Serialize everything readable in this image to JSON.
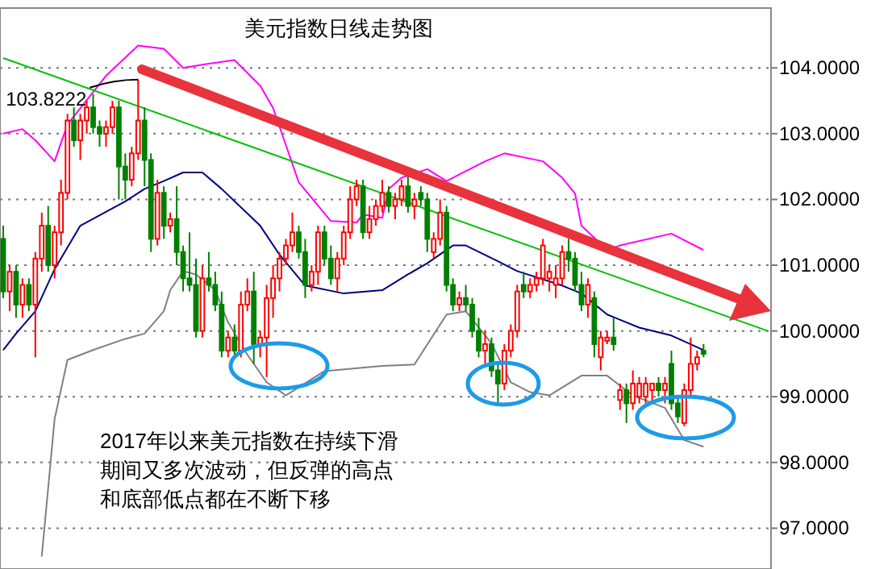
{
  "chart_data": {
    "type": "candlestick",
    "title": "美元指数日线走势图",
    "annotations": [
      "2017年以来美元指数在持续下滑",
      "期间又多次波动，但反弹的高点",
      "和底部低点都在不断下移",
      {
        "text": "103.8222",
        "y": 103.8222
      }
    ],
    "categories": [
      null,
      null,
      null,
      null,
      null,
      null,
      null,
      null,
      null,
      null,
      null,
      null,
      null,
      null,
      null,
      null,
      null,
      null,
      null,
      null,
      null,
      null,
      null,
      null,
      null,
      null,
      null,
      null,
      null,
      null,
      null,
      null,
      null,
      null,
      null,
      null,
      null,
      null,
      null,
      null,
      null,
      null,
      null,
      null,
      null,
      null,
      null,
      null,
      null,
      null,
      null,
      null,
      null,
      null,
      null,
      null,
      null,
      null,
      null,
      null,
      null,
      null,
      null,
      null,
      null,
      null,
      null,
      null,
      null,
      null,
      null,
      null,
      null,
      null,
      null,
      null,
      null,
      null,
      null,
      null,
      null,
      null,
      null,
      null,
      null,
      null,
      null,
      null,
      null,
      null,
      null,
      null,
      null,
      null,
      null,
      null,
      null,
      null,
      null,
      null,
      null,
      null,
      null,
      null,
      null,
      null,
      null,
      null,
      null,
      null,
      null,
      null,
      null,
      null,
      null,
      null,
      null,
      null,
      null,
      null
    ],
    "ohlc": [
      [
        101.4,
        101.6,
        100.5,
        100.6
      ],
      [
        100.6,
        101.0,
        100.3,
        100.9
      ],
      [
        100.9,
        101.0,
        100.2,
        100.4
      ],
      [
        100.4,
        100.8,
        100.2,
        100.7
      ],
      [
        100.7,
        100.8,
        100.3,
        100.4
      ],
      [
        100.4,
        101.2,
        99.6,
        101.1
      ],
      [
        101.1,
        101.8,
        100.9,
        101.6
      ],
      [
        101.6,
        101.9,
        100.9,
        101.0
      ],
      [
        101.0,
        101.6,
        100.8,
        101.5
      ],
      [
        101.5,
        102.3,
        101.3,
        102.1
      ],
      [
        102.1,
        103.3,
        102.0,
        103.2
      ],
      [
        103.2,
        103.4,
        102.8,
        102.9
      ],
      [
        102.9,
        103.3,
        102.6,
        103.2
      ],
      [
        103.2,
        103.5,
        103.0,
        103.4
      ],
      [
        103.4,
        103.6,
        103.0,
        103.1
      ],
      [
        103.1,
        103.2,
        102.8,
        103.0
      ],
      [
        103.0,
        103.2,
        102.8,
        103.1
      ],
      [
        103.1,
        103.5,
        103.0,
        103.4
      ],
      [
        103.4,
        103.5,
        102.0,
        102.5
      ],
      [
        102.5,
        102.7,
        102.0,
        102.3
      ],
      [
        102.3,
        102.8,
        102.2,
        102.7
      ],
      [
        102.7,
        103.8222,
        102.6,
        103.2
      ],
      [
        103.2,
        103.4,
        102.2,
        102.6
      ],
      [
        102.6,
        102.7,
        101.2,
        101.4
      ],
      [
        101.4,
        102.3,
        101.3,
        102.1
      ],
      [
        102.1,
        102.2,
        101.4,
        101.6
      ],
      [
        101.6,
        101.8,
        101.5,
        101.7
      ],
      [
        101.7,
        102.2,
        101.0,
        101.2
      ],
      [
        101.2,
        101.3,
        100.6,
        100.8
      ],
      [
        100.8,
        101.5,
        100.6,
        100.7
      ],
      [
        100.7,
        101.1,
        99.9,
        100.0
      ],
      [
        100.0,
        101.0,
        99.9,
        100.8
      ],
      [
        100.8,
        101.2,
        100.6,
        100.7
      ],
      [
        100.7,
        100.9,
        100.3,
        100.4
      ],
      [
        100.4,
        100.6,
        99.6,
        99.7
      ],
      [
        99.7,
        100.0,
        99.6,
        99.9
      ],
      [
        99.9,
        100.1,
        99.6,
        99.7
      ],
      [
        99.7,
        100.6,
        99.6,
        100.4
      ],
      [
        100.4,
        100.8,
        100.3,
        100.6
      ],
      [
        100.6,
        100.9,
        99.5,
        99.8
      ],
      [
        99.8,
        100.0,
        99.6,
        99.9
      ],
      [
        99.9,
        100.7,
        99.3,
        100.5
      ],
      [
        100.5,
        101.0,
        100.2,
        100.8
      ],
      [
        100.8,
        101.2,
        100.6,
        101.1
      ],
      [
        101.1,
        101.4,
        101.0,
        101.3
      ],
      [
        101.3,
        101.8,
        101.2,
        101.5
      ],
      [
        101.5,
        101.6,
        101.1,
        101.2
      ],
      [
        101.2,
        101.4,
        100.5,
        100.7
      ],
      [
        100.7,
        101.0,
        100.6,
        100.9
      ],
      [
        100.9,
        101.6,
        100.7,
        101.5
      ],
      [
        101.5,
        101.6,
        101.0,
        101.1
      ],
      [
        101.1,
        101.3,
        100.7,
        100.8
      ],
      [
        100.8,
        101.2,
        100.6,
        101.1
      ],
      [
        101.1,
        101.6,
        101.0,
        101.5
      ],
      [
        101.5,
        102.2,
        101.4,
        102.0
      ],
      [
        102.0,
        102.3,
        101.9,
        102.2
      ],
      [
        102.2,
        102.3,
        101.4,
        101.5
      ],
      [
        101.5,
        101.9,
        101.4,
        101.7
      ],
      [
        101.7,
        102.0,
        101.6,
        101.9
      ],
      [
        101.9,
        102.3,
        101.8,
        102.1
      ],
      [
        102.1,
        102.2,
        101.8,
        101.9
      ],
      [
        101.9,
        102.1,
        101.7,
        102.0
      ],
      [
        102.0,
        102.3,
        101.9,
        102.2
      ],
      [
        102.2,
        102.4,
        101.8,
        101.9
      ],
      [
        101.9,
        102.1,
        101.7,
        102.0
      ],
      [
        102.1,
        102.2,
        101.9,
        102.0
      ],
      [
        102.0,
        102.1,
        101.2,
        101.4
      ],
      [
        101.2,
        101.5,
        101.1,
        101.4
      ],
      [
        101.4,
        102.0,
        101.3,
        101.8
      ],
      [
        101.8,
        101.9,
        100.6,
        100.7
      ],
      [
        100.7,
        100.8,
        100.3,
        100.4
      ],
      [
        100.4,
        100.6,
        100.3,
        100.5
      ],
      [
        100.5,
        100.7,
        100.3,
        100.4
      ],
      [
        100.4,
        100.5,
        99.9,
        100.0
      ],
      [
        100.0,
        100.2,
        99.6,
        99.7
      ],
      [
        99.7,
        100.0,
        99.5,
        99.8
      ],
      [
        99.8,
        99.9,
        99.3,
        99.4
      ],
      [
        99.4,
        99.5,
        98.9,
        99.2
      ],
      [
        99.2,
        99.8,
        99.1,
        99.7
      ],
      [
        99.7,
        100.1,
        99.6,
        100.0
      ],
      [
        100.0,
        100.7,
        99.9,
        100.6
      ],
      [
        100.7,
        100.9,
        100.5,
        100.6
      ],
      [
        100.6,
        100.8,
        100.5,
        100.7
      ],
      [
        100.7,
        100.9,
        100.6,
        100.8
      ],
      [
        100.8,
        101.4,
        100.7,
        101.3
      ],
      [
        100.8,
        101.0,
        100.6,
        100.9
      ],
      [
        100.7,
        101.0,
        100.5,
        100.8
      ],
      [
        100.8,
        101.3,
        100.7,
        101.2
      ],
      [
        101.2,
        101.4,
        100.9,
        101.1
      ],
      [
        101.1,
        101.2,
        100.6,
        100.7
      ],
      [
        100.7,
        100.9,
        100.3,
        100.4
      ],
      [
        100.4,
        100.8,
        100.2,
        100.7
      ],
      [
        100.5,
        100.6,
        99.6,
        99.8
      ],
      [
        99.6,
        100.0,
        99.4,
        99.9
      ],
      [
        99.85,
        100.0,
        99.8,
        99.9
      ],
      [
        99.9,
        100.2,
        99.7,
        99.8
      ],
      [
        98.95,
        99.2,
        98.8,
        99.1
      ],
      [
        99.1,
        99.2,
        98.6,
        98.9
      ],
      [
        98.9,
        99.4,
        98.8,
        99.2
      ],
      [
        99.0,
        99.3,
        98.9,
        99.2
      ],
      [
        99.0,
        99.3,
        98.9,
        99.2
      ],
      [
        99.1,
        99.2,
        98.9,
        99.2
      ],
      [
        99.2,
        99.3,
        99.0,
        99.1
      ],
      [
        99.1,
        99.3,
        98.9,
        99.2
      ],
      [
        99.5,
        99.7,
        98.8,
        98.9
      ],
      [
        98.9,
        99.0,
        98.6,
        98.7
      ],
      [
        98.6,
        99.2,
        98.55,
        99.1
      ],
      [
        99.1,
        99.9,
        99.0,
        99.5
      ],
      [
        99.5,
        99.7,
        99.4,
        99.6
      ],
      [
        99.7,
        99.8,
        99.6,
        99.65
      ],
      null,
      null,
      null,
      null,
      null,
      null,
      null,
      null,
      null,
      null
    ],
    "colors": [
      "#008000",
      "#ff0000",
      "#008000",
      "#ff0000",
      "#008000",
      "#ff0000",
      "#ff0000",
      "#008000",
      "#ff0000",
      "#ff0000",
      "#ff0000",
      "#008000",
      "#ff0000",
      "#ff0000",
      "#008000",
      "#008000",
      "#ff0000",
      "#ff0000",
      "#008000",
      "#008000",
      "#ff0000",
      "#ff0000",
      "#008000",
      "#008000",
      "#ff0000",
      "#008000",
      "#ff0000",
      "#008000",
      "#008000",
      "#008000",
      "#008000",
      "#ff0000",
      "#008000",
      "#008000",
      "#008000",
      "#ff0000",
      "#008000",
      "#ff0000",
      "#ff0000",
      "#008000",
      "#ff0000",
      "#ff0000",
      "#ff0000",
      "#ff0000",
      "#ff0000",
      "#ff0000",
      "#008000",
      "#008000",
      "#ff0000",
      "#ff0000",
      "#008000",
      "#008000",
      "#ff0000",
      "#ff0000",
      "#ff0000",
      "#ff0000",
      "#008000",
      "#ff0000",
      "#ff0000",
      "#ff0000",
      "#008000",
      "#ff0000",
      "#ff0000",
      "#008000",
      "#ff0000",
      "#008000",
      "#008000",
      "#ff0000",
      "#ff0000",
      "#008000",
      "#008000",
      "#ff0000",
      "#008000",
      "#008000",
      "#008000",
      "#ff0000",
      "#008000",
      "#008000",
      "#ff0000",
      "#ff0000",
      "#ff0000",
      "#008000",
      "#ff0000",
      "#ff0000",
      "#ff0000",
      "#ff0000",
      "#ff0000",
      "#ff0000",
      "#008000",
      "#008000",
      "#008000",
      "#ff0000",
      "#008000",
      "#ff0000",
      "#ff0000",
      "#008000",
      "#ff0000",
      "#008000",
      "#ff0000",
      "#ff0000",
      "#ff0000",
      "#ff0000",
      "#008000",
      "#ff0000",
      "#008000",
      "#008000",
      "#ff0000",
      "#ff0000",
      "#ff0000",
      "#008000",
      null,
      null,
      null,
      null,
      null,
      null,
      null,
      null,
      null,
      null
    ],
    "series": [
      {
        "type": "line",
        "color": "#ff00ff",
        "values": [
          103.0,
          null,
          null,
          103.07,
          null,
          102.9,
          null,
          null,
          102.58,
          null,
          103.14,
          null,
          null,
          null,
          null,
          null,
          103.88,
          null,
          null,
          null,
          null,
          104.34,
          null,
          null,
          null,
          104.29,
          null,
          null,
          104.0,
          null,
          null,
          104.05,
          null,
          null,
          null,
          null,
          104.12,
          null,
          null,
          null,
          103.73,
          null,
          103.39,
          null,
          null,
          null,
          102.26,
          null,
          null,
          null,
          null,
          101.67,
          null,
          null,
          null,
          101.65,
          101.77,
          null,
          null,
          101.72,
          102.16,
          null,
          102.33,
          null,
          null,
          null,
          102.46,
          null,
          null,
          102.28,
          null,
          null,
          null,
          null,
          null,
          102.58,
          null,
          null,
          102.7,
          null,
          null,
          null,
          null,
          null,
          102.58,
          null,
          null,
          102.33,
          null,
          102.09,
          101.6,
          null,
          null,
          null,
          101.23,
          null,
          101.3,
          null,
          null,
          null,
          null,
          null,
          null,
          null,
          101.48,
          null,
          null,
          null,
          null,
          101.23,
          null,
          null,
          null,
          null,
          null,
          null,
          null,
          null,
          null,
          null
        ]
      },
      {
        "type": "line",
        "color": "#000080",
        "values": [
          99.71,
          null,
          99.96,
          null,
          null,
          100.3,
          null,
          null,
          100.94,
          null,
          null,
          null,
          101.6,
          null,
          null,
          null,
          null,
          null,
          null,
          101.97,
          null,
          null,
          102.16,
          null,
          null,
          102.28,
          null,
          null,
          102.41,
          null,
          null,
          102.41,
          null,
          null,
          102.16,
          null,
          null,
          null,
          null,
          null,
          101.6,
          null,
          null,
          101.16,
          null,
          null,
          null,
          100.69,
          null,
          null,
          null,
          null,
          null,
          100.57,
          null,
          null,
          null,
          null,
          null,
          100.62,
          null,
          null,
          null,
          100.86,
          null,
          null,
          101.03,
          null,
          null,
          null,
          101.3,
          null,
          101.3,
          null,
          null,
          null,
          null,
          101.06,
          null,
          null,
          100.91,
          null,
          null,
          null,
          null,
          null,
          null,
          100.69,
          null,
          null,
          100.57,
          null,
          null,
          null,
          100.25,
          null,
          null,
          null,
          null,
          100.05,
          null,
          null,
          null,
          null,
          99.93,
          null,
          null,
          null,
          null,
          99.71,
          null,
          null,
          null,
          null,
          null,
          null,
          null,
          null,
          null,
          null
        ]
      },
      {
        "type": "line",
        "color": "#808080",
        "values": [
          null,
          null,
          null,
          null,
          null,
          null,
          96.57,
          null,
          98.66,
          null,
          99.56,
          null,
          null,
          null,
          99.71,
          null,
          null,
          null,
          null,
          99.88,
          null,
          null,
          99.96,
          null,
          null,
          100.3,
          100.62,
          null,
          100.91,
          null,
          100.86,
          null,
          null,
          100.62,
          null,
          100.13,
          null,
          null,
          99.64,
          null,
          null,
          99.22,
          null,
          null,
          99.02,
          null,
          null,
          null,
          null,
          null,
          99.39,
          null,
          null,
          null,
          null,
          null,
          null,
          null,
          null,
          99.47,
          null,
          null,
          null,
          null,
          99.49,
          null,
          null,
          null,
          null,
          100.25,
          null,
          null,
          100.3,
          null,
          null,
          null,
          99.81,
          null,
          null,
          99.22,
          null,
          null,
          99.07,
          null,
          null,
          99.02,
          null,
          null,
          null,
          null,
          99.32,
          null,
          null,
          null,
          99.32,
          null,
          null,
          null,
          99.02,
          null,
          null,
          null,
          null,
          98.83,
          null,
          null,
          98.34,
          null,
          null,
          98.24,
          null,
          null,
          null,
          null,
          null,
          null,
          null,
          null,
          null,
          null
        ]
      },
      {
        "type": "line",
        "color": "#00c000",
        "values": [
          104.15,
          null,
          null,
          null,
          null,
          null,
          null,
          null,
          null,
          null,
          null,
          null,
          null,
          null,
          null,
          null,
          null,
          null,
          null,
          null,
          null,
          null,
          null,
          null,
          null,
          null,
          null,
          null,
          null,
          null,
          null,
          null,
          null,
          null,
          null,
          null,
          null,
          null,
          null,
          null,
          null,
          null,
          null,
          null,
          null,
          null,
          null,
          null,
          null,
          null,
          null,
          null,
          null,
          null,
          null,
          null,
          null,
          null,
          null,
          null,
          null,
          null,
          null,
          null,
          null,
          null,
          null,
          null,
          null,
          null,
          null,
          null,
          null,
          null,
          null,
          null,
          null,
          null,
          null,
          null,
          null,
          null,
          null,
          null,
          null,
          null,
          null,
          null,
          null,
          null,
          null,
          null,
          null,
          null,
          null,
          null,
          null,
          null,
          null,
          null,
          null,
          null,
          null,
          null,
          null,
          null,
          null,
          null,
          null,
          null,
          null,
          null,
          null,
          null,
          null,
          null,
          null,
          null,
          null,
          100.0
        ]
      }
    ],
    "ylim": [
      96.38,
      104.91
    ],
    "yticks": [
      {
        "value": 97,
        "label": "97.0000"
      },
      {
        "value": 98,
        "label": "98.0000"
      },
      {
        "value": 99,
        "label": "99.0000"
      },
      {
        "value": 100,
        "label": "100.0000"
      },
      {
        "value": 101,
        "label": "101.0000"
      },
      {
        "value": 102,
        "label": "102.0000"
      },
      {
        "value": 103,
        "label": "103.0000"
      },
      {
        "value": 104,
        "label": "104.0000"
      }
    ],
    "grid": "y",
    "tick_labels": "y"
  }
}
